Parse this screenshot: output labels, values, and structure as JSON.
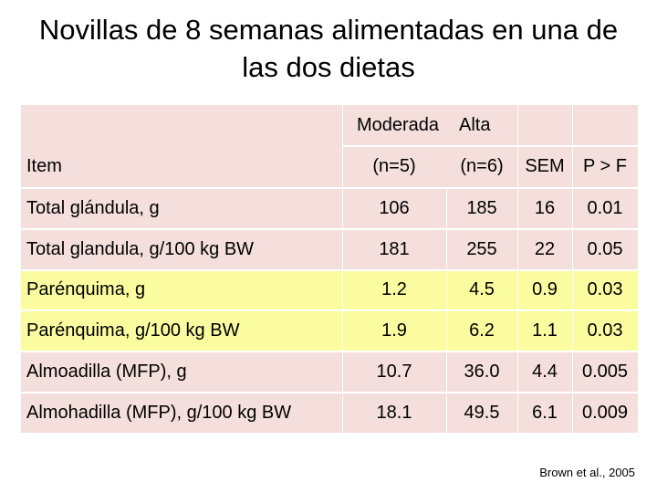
{
  "title": {
    "line1": "Novillas de 8 semanas alimentadas en una de",
    "line2": "las dos dietas"
  },
  "table": {
    "header1": {
      "moderada": "Moderada",
      "alta": "Alta"
    },
    "header2": {
      "item": "Item",
      "moderada": "(n=5)",
      "alta": "(n=6)",
      "sem": "SEM",
      "p": "P > F"
    },
    "rows": [
      {
        "item": "Total glándula, g",
        "moderada": "106",
        "alta": "185",
        "sem": "16",
        "p": "0.01",
        "highlight": false
      },
      {
        "item": "Total glandula, g/100 kg BW",
        "moderada": "181",
        "alta": "255",
        "sem": "22",
        "p": "0.05",
        "highlight": false
      },
      {
        "item": "Parénquima, g",
        "moderada": "1.2",
        "alta": "4.5",
        "sem": "0.9",
        "p": "0.03",
        "highlight": true
      },
      {
        "item": "Parénquima, g/100 kg BW",
        "moderada": "1.9",
        "alta": "6.2",
        "sem": "1.1",
        "p": "0.03",
        "highlight": true
      },
      {
        "item": "Almoadilla (MFP), g",
        "moderada": "10.7",
        "alta": "36.0",
        "sem": "4.4",
        "p": "0.005",
        "highlight": false
      },
      {
        "item": "Almohadilla (MFP), g/100 kg BW",
        "moderada": "18.1",
        "alta": "49.5",
        "sem": "6.1",
        "p": "0.009",
        "highlight": false
      }
    ]
  },
  "citation": {
    "authors": "Brown et al.",
    "year": ", 2005"
  },
  "colors": {
    "row_default": "#f5dfdd",
    "row_highlight": "#fbfba0",
    "header_bg": "#f5dfdd"
  }
}
